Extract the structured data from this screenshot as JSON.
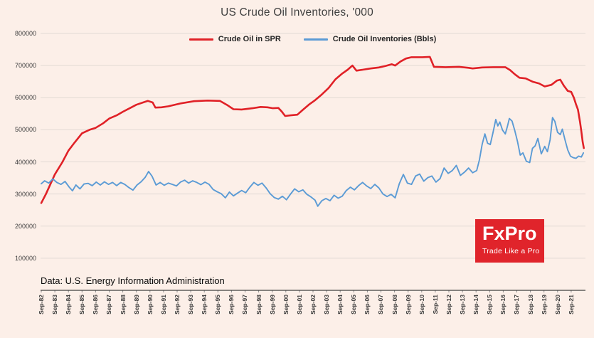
{
  "page": {
    "background": "#fcefe8"
  },
  "branding": {
    "logo_text": "FxPro",
    "tagline": "Trade Like a Pro",
    "brand_red": "#e0242b"
  },
  "chart_data": {
    "type": "line",
    "title": "US Crude Oil Inventories, '000",
    "source_note": "Data: U.S. Energy Information Administration",
    "legend_position": "top-center",
    "grid": true,
    "grid_color": "#e2dad4",
    "axis_color": "#404040",
    "xlim": [
      1982.7,
      2022.75
    ],
    "ylim": [
      0,
      800000
    ],
    "y_ticks": [
      100000,
      200000,
      300000,
      400000,
      500000,
      600000,
      700000,
      800000
    ],
    "x_tick_start": 1982.75,
    "x_tick_step": 1,
    "x_tick_labels": [
      "Sep-82",
      "Sep-83",
      "Sep-84",
      "Sep-85",
      "Sep-86",
      "Sep-87",
      "Sep-88",
      "Sep-89",
      "Sep-90",
      "Sep-91",
      "Sep-92",
      "Sep-93",
      "Sep-94",
      "Sep-95",
      "Sep-96",
      "Sep-97",
      "Sep-98",
      "Sep-99",
      "Sep-00",
      "Sep-01",
      "Sep-02",
      "Sep-03",
      "Sep-04",
      "Sep-05",
      "Sep-06",
      "Sep-07",
      "Sep-08",
      "Sep-09",
      "Sep-10",
      "Sep-11",
      "Sep-12",
      "Sep-13",
      "Sep-14",
      "Sep-15",
      "Sep-16",
      "Sep-17",
      "Sep-18",
      "Sep-19",
      "Sep-20",
      "Sep-21"
    ],
    "series": [
      {
        "name": "Crude Oil in SPR",
        "color": "#e02127",
        "width": 2.6,
        "points": [
          [
            1982.75,
            272000
          ],
          [
            1983.1,
            300000
          ],
          [
            1983.75,
            361000
          ],
          [
            1984.3,
            399000
          ],
          [
            1984.75,
            435000
          ],
          [
            1985.2,
            460000
          ],
          [
            1985.75,
            489000
          ],
          [
            1986.3,
            500000
          ],
          [
            1986.75,
            506000
          ],
          [
            1987.3,
            520000
          ],
          [
            1987.75,
            535000
          ],
          [
            1988.3,
            545000
          ],
          [
            1988.75,
            556000
          ],
          [
            1989.3,
            568000
          ],
          [
            1989.75,
            578000
          ],
          [
            1990.3,
            586000
          ],
          [
            1990.6,
            590000
          ],
          [
            1990.95,
            585000
          ],
          [
            1991.15,
            569000
          ],
          [
            1991.6,
            570000
          ],
          [
            1992.1,
            573000
          ],
          [
            1993,
            582000
          ],
          [
            1994,
            589000
          ],
          [
            1995,
            591000
          ],
          [
            1995.9,
            590000
          ],
          [
            1996.4,
            578000
          ],
          [
            1996.9,
            564000
          ],
          [
            1997.5,
            563000
          ],
          [
            1998.3,
            567000
          ],
          [
            1998.9,
            571000
          ],
          [
            1999.4,
            570000
          ],
          [
            1999.8,
            567000
          ],
          [
            2000.2,
            568000
          ],
          [
            2000.45,
            557000
          ],
          [
            2000.7,
            543000
          ],
          [
            2001.1,
            545000
          ],
          [
            2001.6,
            547000
          ],
          [
            2002,
            562000
          ],
          [
            2002.5,
            580000
          ],
          [
            2002.9,
            592000
          ],
          [
            2003.4,
            610000
          ],
          [
            2003.9,
            630000
          ],
          [
            2004.4,
            657000
          ],
          [
            2004.9,
            675000
          ],
          [
            2005.3,
            687000
          ],
          [
            2005.65,
            700000
          ],
          [
            2005.95,
            684000
          ],
          [
            2006.4,
            687000
          ],
          [
            2007,
            691000
          ],
          [
            2007.6,
            694000
          ],
          [
            2008.1,
            699000
          ],
          [
            2008.55,
            704000
          ],
          [
            2008.8,
            700000
          ],
          [
            2009.2,
            713000
          ],
          [
            2009.6,
            722000
          ],
          [
            2010,
            726000
          ],
          [
            2010.8,
            726000
          ],
          [
            2011.35,
            727000
          ],
          [
            2011.65,
            696000
          ],
          [
            2012.5,
            695000
          ],
          [
            2013.5,
            696000
          ],
          [
            2014.2,
            693000
          ],
          [
            2014.5,
            691000
          ],
          [
            2015.2,
            694000
          ],
          [
            2016,
            695000
          ],
          [
            2016.9,
            695000
          ],
          [
            2017.25,
            686000
          ],
          [
            2017.6,
            673000
          ],
          [
            2017.95,
            662000
          ],
          [
            2018.4,
            660000
          ],
          [
            2018.9,
            650000
          ],
          [
            2019.4,
            644000
          ],
          [
            2019.8,
            635000
          ],
          [
            2020.3,
            640000
          ],
          [
            2020.7,
            653000
          ],
          [
            2020.95,
            656000
          ],
          [
            2021.2,
            638000
          ],
          [
            2021.5,
            621000
          ],
          [
            2021.75,
            618000
          ],
          [
            2021.95,
            600000
          ],
          [
            2022.1,
            580000
          ],
          [
            2022.25,
            563000
          ],
          [
            2022.4,
            525000
          ],
          [
            2022.5,
            495000
          ],
          [
            2022.6,
            462000
          ],
          [
            2022.68,
            443000
          ]
        ]
      },
      {
        "name": "Crude Oil Inventories (Bbls)",
        "color": "#5b9bd5",
        "width": 1.9,
        "points": [
          [
            1982.75,
            332000
          ],
          [
            1983,
            341000
          ],
          [
            1983.3,
            334000
          ],
          [
            1983.6,
            347000
          ],
          [
            1983.9,
            336000
          ],
          [
            1984.2,
            330000
          ],
          [
            1984.5,
            339000
          ],
          [
            1984.8,
            322000
          ],
          [
            1985.05,
            310000
          ],
          [
            1985.3,
            328000
          ],
          [
            1985.6,
            316000
          ],
          [
            1985.9,
            331000
          ],
          [
            1986.2,
            333000
          ],
          [
            1986.5,
            326000
          ],
          [
            1986.8,
            337000
          ],
          [
            1987.1,
            328000
          ],
          [
            1987.4,
            338000
          ],
          [
            1987.7,
            330000
          ],
          [
            1988,
            336000
          ],
          [
            1988.3,
            326000
          ],
          [
            1988.6,
            336000
          ],
          [
            1988.9,
            330000
          ],
          [
            1989.2,
            320000
          ],
          [
            1989.5,
            312000
          ],
          [
            1989.8,
            328000
          ],
          [
            1990.1,
            338000
          ],
          [
            1990.4,
            352000
          ],
          [
            1990.65,
            370000
          ],
          [
            1990.9,
            356000
          ],
          [
            1991.2,
            328000
          ],
          [
            1991.5,
            336000
          ],
          [
            1991.8,
            327000
          ],
          [
            1992.1,
            334000
          ],
          [
            1992.4,
            330000
          ],
          [
            1992.7,
            325000
          ],
          [
            1993,
            337000
          ],
          [
            1993.3,
            343000
          ],
          [
            1993.6,
            334000
          ],
          [
            1993.9,
            341000
          ],
          [
            1994.2,
            336000
          ],
          [
            1994.5,
            329000
          ],
          [
            1994.8,
            337000
          ],
          [
            1995.1,
            330000
          ],
          [
            1995.4,
            314000
          ],
          [
            1995.7,
            307000
          ],
          [
            1996,
            301000
          ],
          [
            1996.3,
            288000
          ],
          [
            1996.6,
            306000
          ],
          [
            1996.9,
            294000
          ],
          [
            1997.2,
            303000
          ],
          [
            1997.5,
            311000
          ],
          [
            1997.8,
            304000
          ],
          [
            1998.1,
            321000
          ],
          [
            1998.4,
            336000
          ],
          [
            1998.7,
            327000
          ],
          [
            1999,
            334000
          ],
          [
            1999.3,
            319000
          ],
          [
            1999.6,
            301000
          ],
          [
            1999.9,
            289000
          ],
          [
            2000.2,
            284000
          ],
          [
            2000.5,
            293000
          ],
          [
            2000.8,
            282000
          ],
          [
            2001.1,
            300000
          ],
          [
            2001.4,
            316000
          ],
          [
            2001.7,
            307000
          ],
          [
            2002,
            313000
          ],
          [
            2002.3,
            299000
          ],
          [
            2002.6,
            291000
          ],
          [
            2002.9,
            281000
          ],
          [
            2003.1,
            262000
          ],
          [
            2003.4,
            279000
          ],
          [
            2003.7,
            286000
          ],
          [
            2004,
            279000
          ],
          [
            2004.3,
            296000
          ],
          [
            2004.6,
            287000
          ],
          [
            2004.9,
            293000
          ],
          [
            2005.2,
            311000
          ],
          [
            2005.5,
            321000
          ],
          [
            2005.8,
            313000
          ],
          [
            2006.1,
            326000
          ],
          [
            2006.4,
            336000
          ],
          [
            2006.7,
            325000
          ],
          [
            2007,
            317000
          ],
          [
            2007.3,
            330000
          ],
          [
            2007.6,
            319000
          ],
          [
            2007.9,
            300000
          ],
          [
            2008.2,
            292000
          ],
          [
            2008.5,
            299000
          ],
          [
            2008.8,
            288000
          ],
          [
            2009.1,
            332000
          ],
          [
            2009.4,
            361000
          ],
          [
            2009.7,
            334000
          ],
          [
            2010,
            330000
          ],
          [
            2010.3,
            356000
          ],
          [
            2010.6,
            362000
          ],
          [
            2010.9,
            340000
          ],
          [
            2011.2,
            351000
          ],
          [
            2011.5,
            356000
          ],
          [
            2011.8,
            337000
          ],
          [
            2012.1,
            348000
          ],
          [
            2012.4,
            381000
          ],
          [
            2012.7,
            364000
          ],
          [
            2013,
            373000
          ],
          [
            2013.3,
            389000
          ],
          [
            2013.6,
            358000
          ],
          [
            2013.9,
            368000
          ],
          [
            2014.2,
            381000
          ],
          [
            2014.5,
            366000
          ],
          [
            2014.8,
            373000
          ],
          [
            2015,
            407000
          ],
          [
            2015.2,
            455000
          ],
          [
            2015.4,
            487000
          ],
          [
            2015.6,
            458000
          ],
          [
            2015.8,
            454000
          ],
          [
            2016,
            492000
          ],
          [
            2016.2,
            532000
          ],
          [
            2016.35,
            512000
          ],
          [
            2016.5,
            524000
          ],
          [
            2016.7,
            499000
          ],
          [
            2016.9,
            487000
          ],
          [
            2017.05,
            509000
          ],
          [
            2017.2,
            535000
          ],
          [
            2017.4,
            527000
          ],
          [
            2017.6,
            498000
          ],
          [
            2017.8,
            464000
          ],
          [
            2018,
            421000
          ],
          [
            2018.2,
            428000
          ],
          [
            2018.45,
            402000
          ],
          [
            2018.7,
            398000
          ],
          [
            2018.9,
            442000
          ],
          [
            2019.1,
            450000
          ],
          [
            2019.3,
            473000
          ],
          [
            2019.55,
            425000
          ],
          [
            2019.8,
            448000
          ],
          [
            2020,
            432000
          ],
          [
            2020.2,
            469000
          ],
          [
            2020.38,
            538000
          ],
          [
            2020.55,
            526000
          ],
          [
            2020.75,
            492000
          ],
          [
            2020.95,
            485000
          ],
          [
            2021.1,
            502000
          ],
          [
            2021.3,
            468000
          ],
          [
            2021.5,
            437000
          ],
          [
            2021.7,
            418000
          ],
          [
            2021.9,
            413000
          ],
          [
            2022.1,
            411000
          ],
          [
            2022.3,
            418000
          ],
          [
            2022.5,
            415000
          ],
          [
            2022.65,
            428000
          ]
        ]
      }
    ]
  }
}
